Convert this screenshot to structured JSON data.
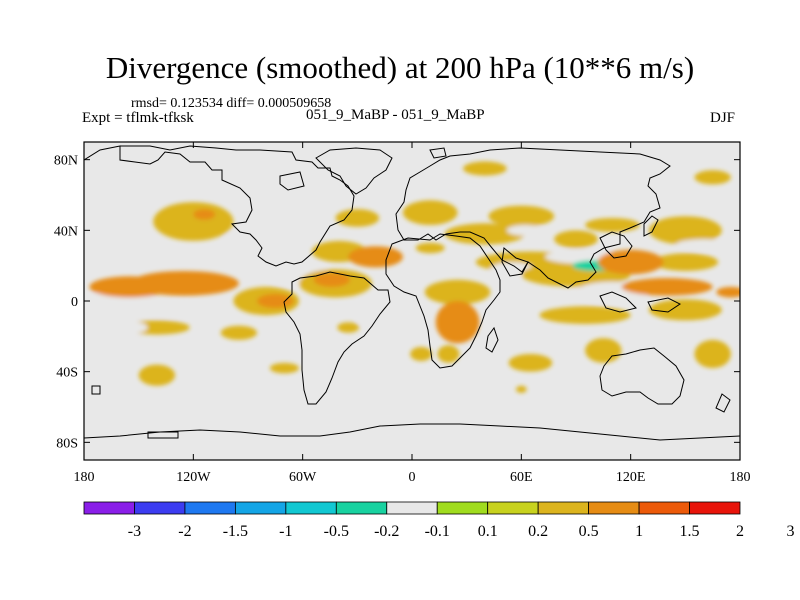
{
  "chart_data": {
    "type": "contour-map",
    "title": "Divergence (smoothed) at 200 hPa (10**6 m/s)",
    "stats_line": "rmsd= 0.123534 diff= 0.000509658",
    "left_label": "Expt = tflmk-tfksk",
    "center_label": "051_9_MaBP - 051_9_MaBP",
    "right_label": "DJF",
    "xlim": [
      -180,
      180
    ],
    "ylim": [
      -90,
      90
    ],
    "x_ticks": [
      {
        "value": -180,
        "label": "180"
      },
      {
        "value": -120,
        "label": "120W"
      },
      {
        "value": -60,
        "label": "60W"
      },
      {
        "value": 0,
        "label": "0"
      },
      {
        "value": 60,
        "label": "60E"
      },
      {
        "value": 120,
        "label": "120E"
      },
      {
        "value": 180,
        "label": "180"
      }
    ],
    "y_ticks": [
      {
        "value": 80,
        "label": "80N"
      },
      {
        "value": 40,
        "label": "40N"
      },
      {
        "value": 0,
        "label": "0"
      },
      {
        "value": -40,
        "label": "40S"
      },
      {
        "value": -80,
        "label": "80S"
      }
    ],
    "colorbar": {
      "colors": [
        "#8a1ee8",
        "#3c3cf0",
        "#1e78f0",
        "#14a5e6",
        "#12c8d2",
        "#18d2a0",
        "#e8e8e8",
        "#a0dc1e",
        "#c8d21e",
        "#dcb41e",
        "#e68c14",
        "#ec5a0a",
        "#e8140a"
      ],
      "labels": [
        "-3",
        "-2",
        "-1.5",
        "-1",
        "-0.5",
        "-0.2",
        "-0.1",
        "0.1",
        "0.2",
        "0.5",
        "1",
        "1.5",
        "2",
        "3"
      ],
      "label_positions": [
        1,
        2,
        3,
        4,
        5,
        6,
        7,
        8,
        9,
        10,
        11,
        12,
        13,
        14
      ]
    },
    "field_regions": [
      {
        "lon": -155,
        "lat": 8,
        "rx": 22,
        "ry": 6,
        "value": 0.5
      },
      {
        "lon": -125,
        "lat": 10,
        "rx": 30,
        "ry": 7,
        "value": 0.5
      },
      {
        "lon": -160,
        "lat": 2,
        "rx": 18,
        "ry": 3,
        "value": -0.2
      },
      {
        "lon": -120,
        "lat": 45,
        "rx": 22,
        "ry": 11,
        "value": 0.2
      },
      {
        "lon": -114,
        "lat": 49,
        "rx": 6,
        "ry": 3,
        "value": 0.5
      },
      {
        "lon": -162,
        "lat": 38,
        "rx": 12,
        "ry": 6,
        "value": -0.2
      },
      {
        "lon": -130,
        "lat": -5,
        "rx": 25,
        "ry": 4,
        "value": -0.2
      },
      {
        "lon": -140,
        "lat": -15,
        "rx": 18,
        "ry": 4,
        "value": 0.2
      },
      {
        "lon": -160,
        "lat": -15,
        "rx": 15,
        "ry": 4,
        "value": -0.2
      },
      {
        "lon": -140,
        "lat": -42,
        "rx": 10,
        "ry": 6,
        "value": 0.2
      },
      {
        "lon": -95,
        "lat": -18,
        "rx": 10,
        "ry": 4,
        "value": 0.2
      },
      {
        "lon": -80,
        "lat": 0,
        "rx": 18,
        "ry": 8,
        "value": 0.2
      },
      {
        "lon": -75,
        "lat": 0,
        "rx": 10,
        "ry": 4,
        "value": 0.5
      },
      {
        "lon": -62,
        "lat": 15,
        "rx": 18,
        "ry": 6,
        "value": -0.2
      },
      {
        "lon": -42,
        "lat": 10,
        "rx": 20,
        "ry": 8,
        "value": 0.2
      },
      {
        "lon": -44,
        "lat": 12,
        "rx": 10,
        "ry": 4,
        "value": 0.5
      },
      {
        "lon": -85,
        "lat": 35,
        "rx": 18,
        "ry": 5,
        "value": -0.2
      },
      {
        "lon": -40,
        "lat": 28,
        "rx": 15,
        "ry": 6,
        "value": 0.2
      },
      {
        "lon": -30,
        "lat": 47,
        "rx": 12,
        "ry": 5,
        "value": 0.2
      },
      {
        "lon": -20,
        "lat": 25,
        "rx": 15,
        "ry": 6,
        "value": 0.5
      },
      {
        "lon": -35,
        "lat": -15,
        "rx": 6,
        "ry": 3,
        "value": 0.2
      },
      {
        "lon": -45,
        "lat": -23,
        "rx": 8,
        "ry": 3,
        "value": -0.2
      },
      {
        "lon": -20,
        "lat": -10,
        "rx": 10,
        "ry": 4,
        "value": -0.2
      },
      {
        "lon": -70,
        "lat": -38,
        "rx": 8,
        "ry": 3,
        "value": 0.2
      },
      {
        "lon": 10,
        "lat": 50,
        "rx": 15,
        "ry": 7,
        "value": 0.2
      },
      {
        "lon": 10,
        "lat": 30,
        "rx": 8,
        "ry": 3,
        "value": 0.2
      },
      {
        "lon": 25,
        "lat": 5,
        "rx": 18,
        "ry": 7,
        "value": 0.2
      },
      {
        "lon": 25,
        "lat": -12,
        "rx": 12,
        "ry": 12,
        "value": 0.5
      },
      {
        "lon": 20,
        "lat": -30,
        "rx": 6,
        "ry": 5,
        "value": 0.2
      },
      {
        "lon": 40,
        "lat": 38,
        "rx": 22,
        "ry": 6,
        "value": 0.2
      },
      {
        "lon": 60,
        "lat": 48,
        "rx": 18,
        "ry": 6,
        "value": 0.2
      },
      {
        "lon": 62,
        "lat": 40,
        "rx": 10,
        "ry": 3,
        "value": -0.2
      },
      {
        "lon": 40,
        "lat": 75,
        "rx": 12,
        "ry": 4,
        "value": 0.2
      },
      {
        "lon": 65,
        "lat": 22,
        "rx": 30,
        "ry": 6,
        "value": 0.2
      },
      {
        "lon": 55,
        "lat": 18,
        "rx": 12,
        "ry": 4,
        "value": -0.2
      },
      {
        "lon": 90,
        "lat": 15,
        "rx": 30,
        "ry": 7,
        "value": 0.2
      },
      {
        "lon": 95,
        "lat": 25,
        "rx": 22,
        "ry": 4,
        "value": -0.2
      },
      {
        "lon": 100,
        "lat": 20,
        "rx": 12,
        "ry": 3,
        "value": -0.5
      },
      {
        "lon": 120,
        "lat": 22,
        "rx": 18,
        "ry": 7,
        "value": 0.5
      },
      {
        "lon": 140,
        "lat": 8,
        "rx": 25,
        "ry": 5,
        "value": 0.5
      },
      {
        "lon": 150,
        "lat": 22,
        "rx": 18,
        "ry": 5,
        "value": 0.2
      },
      {
        "lon": 150,
        "lat": 40,
        "rx": 20,
        "ry": 8,
        "value": 0.2
      },
      {
        "lon": 160,
        "lat": 32,
        "rx": 15,
        "ry": 3,
        "value": -0.2
      },
      {
        "lon": 175,
        "lat": 5,
        "rx": 8,
        "ry": 3,
        "value": 0.5
      },
      {
        "lon": 95,
        "lat": -8,
        "rx": 25,
        "ry": 5,
        "value": 0.2
      },
      {
        "lon": 110,
        "lat": 5,
        "rx": 20,
        "ry": 6,
        "value": -0.2
      },
      {
        "lon": 105,
        "lat": -28,
        "rx": 10,
        "ry": 7,
        "value": 0.2
      },
      {
        "lon": 150,
        "lat": -5,
        "rx": 20,
        "ry": 6,
        "value": 0.2
      },
      {
        "lon": 165,
        "lat": -30,
        "rx": 10,
        "ry": 8,
        "value": 0.2
      },
      {
        "lon": 65,
        "lat": -35,
        "rx": 12,
        "ry": 5,
        "value": 0.2
      },
      {
        "lon": 150,
        "lat": -65,
        "rx": 6,
        "ry": 3,
        "value": -0.2
      },
      {
        "lon": 60,
        "lat": -50,
        "rx": 3,
        "ry": 2,
        "value": 0.2
      },
      {
        "lon": 165,
        "lat": 70,
        "rx": 10,
        "ry": 4,
        "value": 0.2
      },
      {
        "lon": 90,
        "lat": 35,
        "rx": 12,
        "ry": 5,
        "value": 0.2
      },
      {
        "lon": 110,
        "lat": 43,
        "rx": 15,
        "ry": 4,
        "value": 0.2
      },
      {
        "lon": 5,
        "lat": -30,
        "rx": 6,
        "ry": 4,
        "value": 0.2
      }
    ]
  }
}
